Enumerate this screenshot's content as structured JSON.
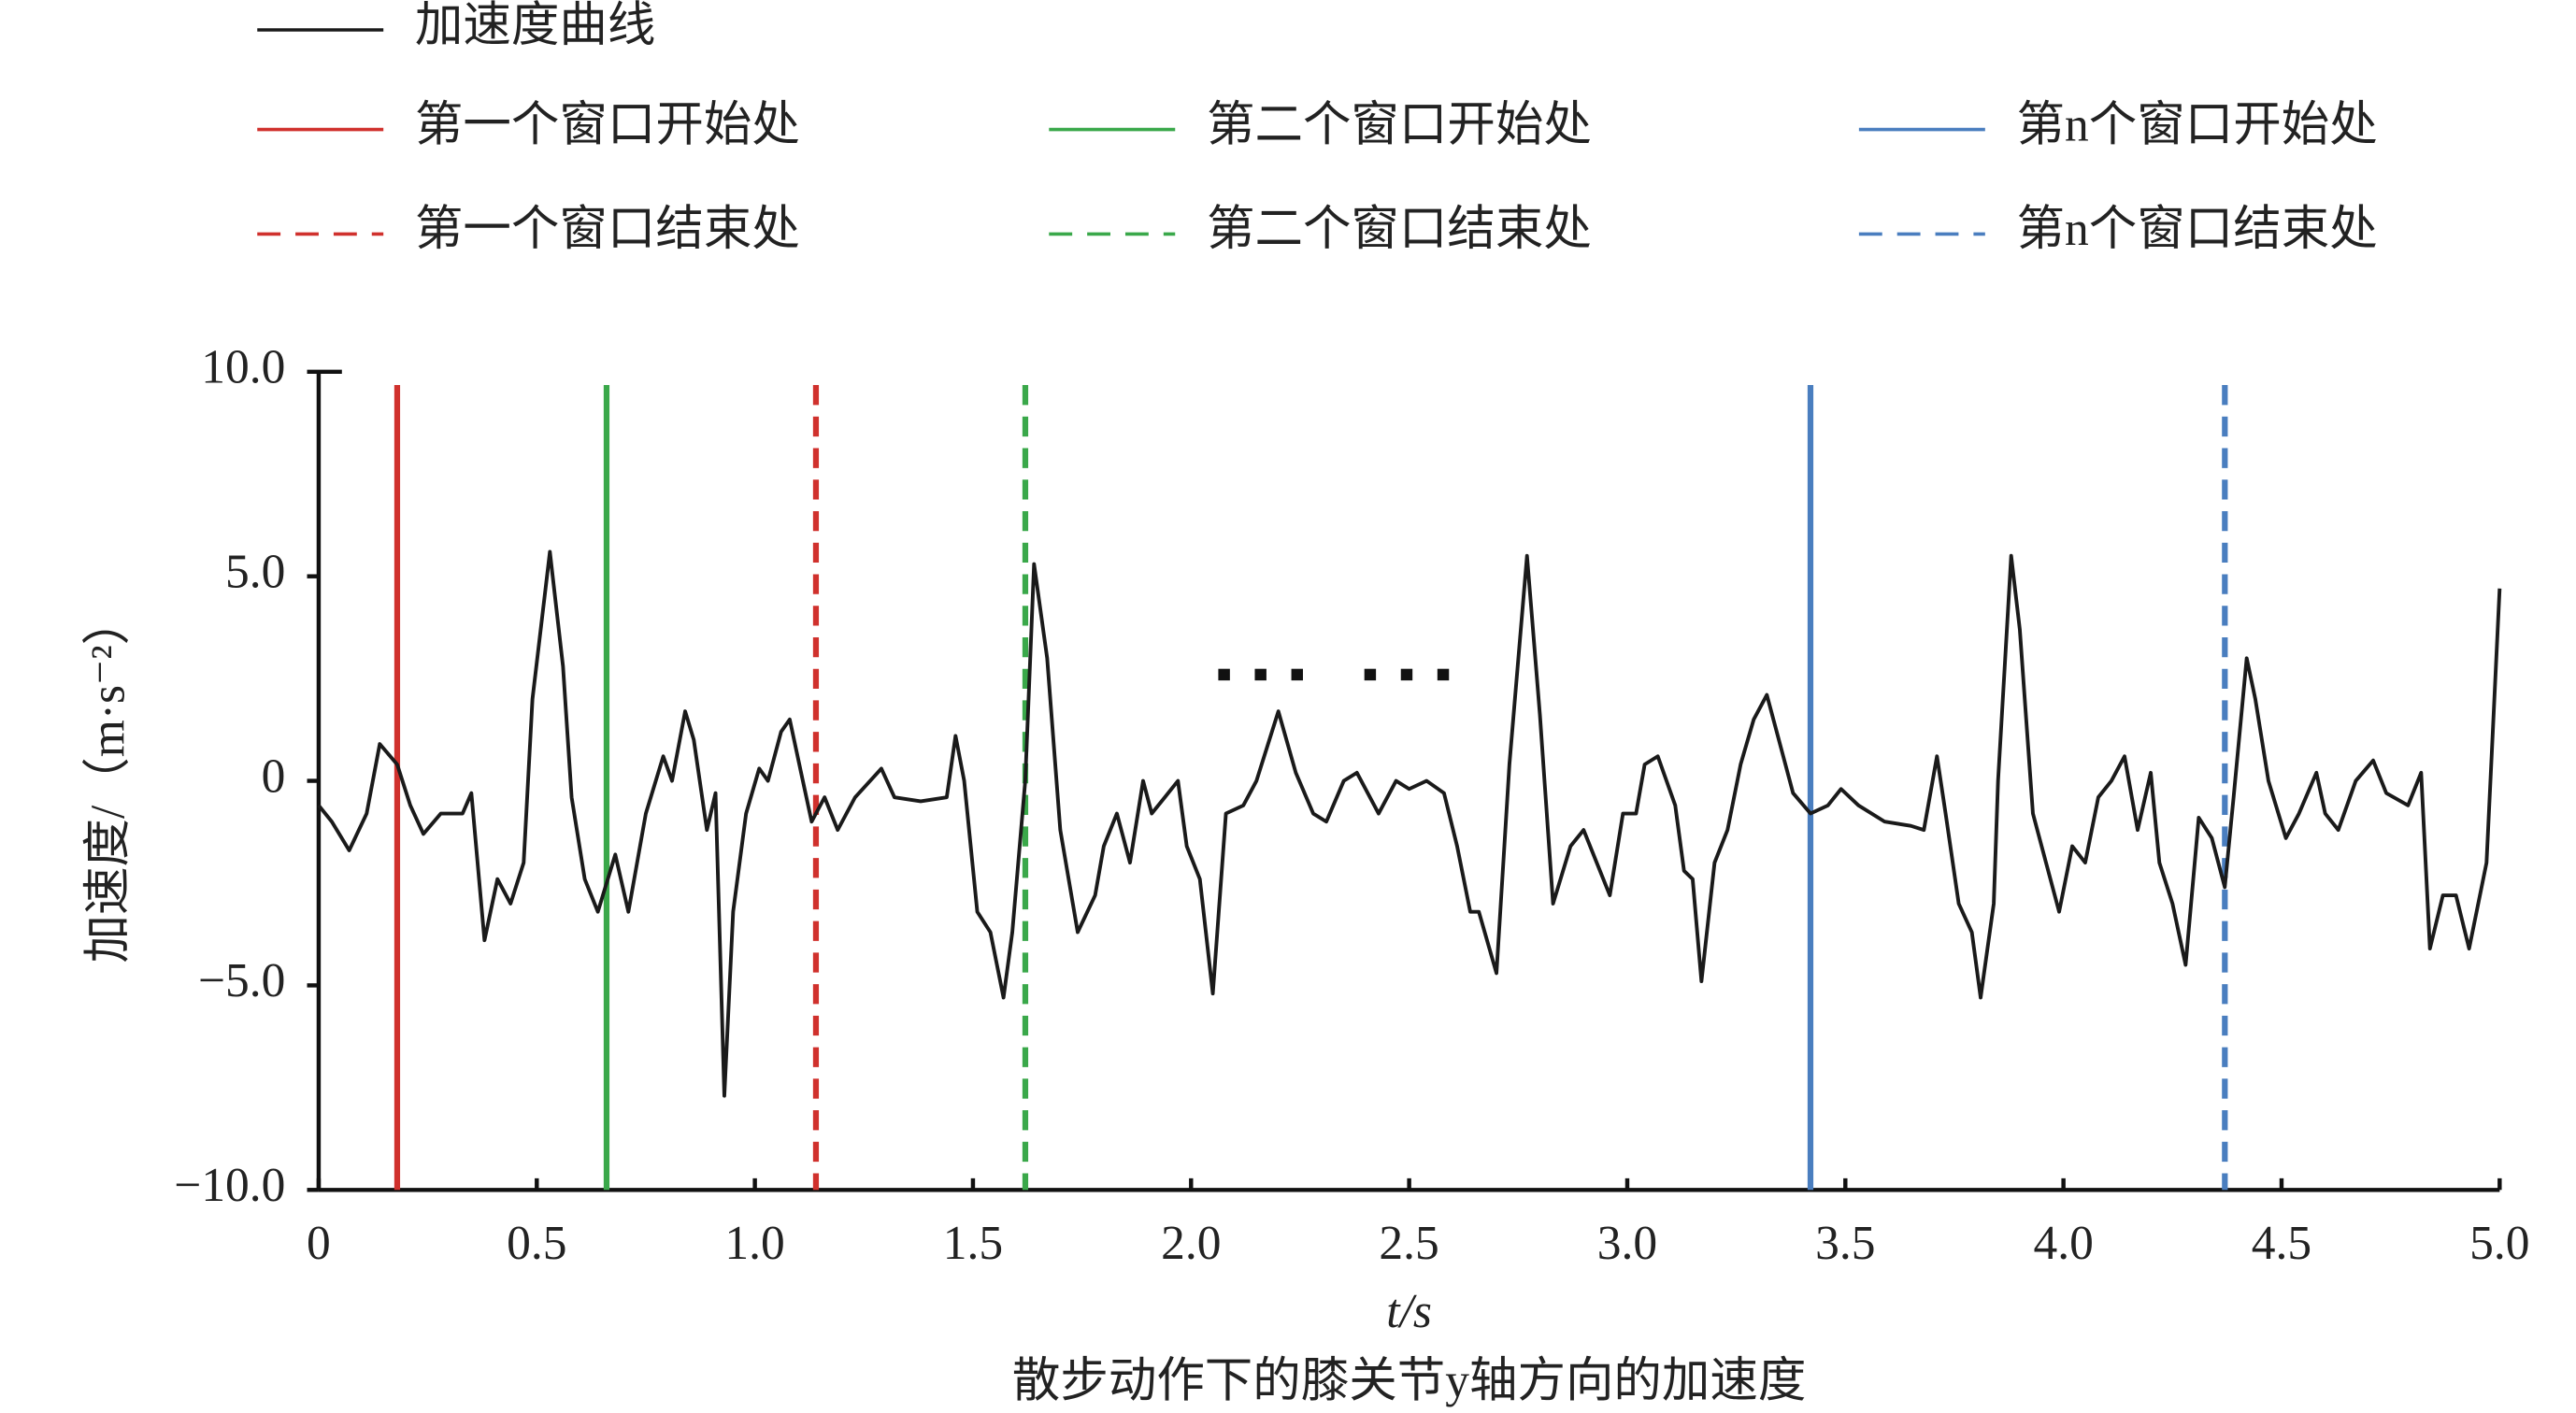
{
  "chart_data": {
    "type": "line",
    "x_label": "t/s",
    "y_label": "加速度/（m·s⁻²）",
    "caption": "散步动作下的膝关节y轴方向的加速度",
    "xlim": [
      0,
      5
    ],
    "xticks": [
      0,
      0.5,
      {
        "value": 1,
        "label": "1.0"
      },
      1.5,
      {
        "value": 2,
        "label": "2.0"
      },
      2.5,
      {
        "value": 3,
        "label": "3.0"
      },
      3.5,
      {
        "value": 4,
        "label": "4.0"
      },
      4.5,
      {
        "value": 5,
        "label": "5.0"
      }
    ],
    "ylim": [
      -10,
      10
    ],
    "yticks": [
      {
        "value": -10,
        "label": "−10.0"
      },
      {
        "value": -5,
        "label": "−5.0"
      },
      0,
      {
        "value": 5,
        "label": "5.0"
      },
      {
        "value": 10,
        "label": "10.0"
      }
    ],
    "series": [
      {
        "name": "加速度曲线",
        "color": "#1a1a1a",
        "x": [
          0,
          0.03,
          0.07,
          0.11,
          0.14,
          0.18,
          0.21,
          0.24,
          0.28,
          0.33,
          0.35,
          0.38,
          0.41,
          0.44,
          0.47,
          0.49,
          0.53,
          0.56,
          0.58,
          0.61,
          0.64,
          0.68,
          0.71,
          0.75,
          0.79,
          0.81,
          0.84,
          0.86,
          0.89,
          0.91,
          0.93,
          0.95,
          0.98,
          1.01,
          1.03,
          1.06,
          1.08,
          1.11,
          1.13,
          1.16,
          1.19,
          1.23,
          1.29,
          1.32,
          1.38,
          1.44,
          1.46,
          1.48,
          1.51,
          1.54,
          1.57,
          1.59,
          1.62,
          1.64,
          1.67,
          1.7,
          1.74,
          1.78,
          1.8,
          1.83,
          1.86,
          1.89,
          1.91,
          1.94,
          1.97,
          1.99,
          2.02,
          2.05,
          2.08,
          2.12,
          2.15,
          2.2,
          2.24,
          2.28,
          2.31,
          2.35,
          2.38,
          2.43,
          2.47,
          2.5,
          2.54,
          2.58,
          2.61,
          2.64,
          2.66,
          2.7,
          2.73,
          2.77,
          2.8,
          2.83,
          2.87,
          2.9,
          2.93,
          2.96,
          2.99,
          3.02,
          3.04,
          3.07,
          3.11,
          3.13,
          3.15,
          3.17,
          3.2,
          3.23,
          3.26,
          3.29,
          3.32,
          3.35,
          3.38,
          3.42,
          3.46,
          3.49,
          3.53,
          3.59,
          3.65,
          3.68,
          3.71,
          3.73,
          3.76,
          3.79,
          3.81,
          3.84,
          3.85,
          3.88,
          3.9,
          3.93,
          3.96,
          3.99,
          4.02,
          4.05,
          4.08,
          4.11,
          4.14,
          4.17,
          4.2,
          4.22,
          4.25,
          4.28,
          4.31,
          4.34,
          4.37,
          4.39,
          4.42,
          4.44,
          4.47,
          4.51,
          4.54,
          4.58,
          4.6,
          4.63,
          4.67,
          4.71,
          4.74,
          4.79,
          4.82,
          4.84,
          4.87,
          4.9,
          4.93,
          4.97,
          5.0
        ],
        "values": [
          -0.6,
          -1.0,
          -1.7,
          -0.8,
          0.9,
          0.4,
          -0.6,
          -1.3,
          -0.8,
          -0.8,
          -0.3,
          -3.9,
          -2.4,
          -3.0,
          -2.0,
          2.0,
          5.6,
          2.8,
          -0.4,
          -2.4,
          -3.2,
          -1.8,
          -3.2,
          -0.8,
          0.6,
          0,
          1.7,
          1.0,
          -1.2,
          -0.3,
          -7.7,
          -3.2,
          -0.8,
          0.3,
          0,
          1.2,
          1.5,
          0,
          -1.0,
          -0.4,
          -1.2,
          -0.4,
          0.3,
          -0.4,
          -0.5,
          -0.4,
          1.1,
          0,
          -3.2,
          -3.7,
          -5.3,
          -3.7,
          0,
          5.3,
          3.0,
          -1.2,
          -3.7,
          -2.8,
          -1.6,
          -0.8,
          -2.0,
          0,
          -0.8,
          -0.4,
          0,
          -1.6,
          -2.4,
          -5.2,
          -0.8,
          -0.6,
          0,
          1.7,
          0.2,
          -0.8,
          -1.0,
          0,
          0.2,
          -0.8,
          0,
          -0.2,
          0,
          -0.3,
          -1.6,
          -3.2,
          -3.2,
          -4.7,
          0.4,
          5.5,
          1.6,
          -3.0,
          -1.6,
          -1.2,
          -2.0,
          -2.8,
          -0.8,
          -0.8,
          0.4,
          0.6,
          -0.6,
          -2.2,
          -2.4,
          -4.9,
          -2.0,
          -1.2,
          0.4,
          1.5,
          2.1,
          0.9,
          -0.3,
          -0.8,
          -0.6,
          -0.2,
          -0.6,
          -1.0,
          -1.1,
          -1.2,
          0.6,
          -0.8,
          -3.0,
          -3.7,
          -5.3,
          -3.0,
          0,
          5.5,
          3.7,
          -0.8,
          -2.0,
          -3.2,
          -1.6,
          -2.0,
          -0.4,
          0,
          0.6,
          -1.2,
          0.2,
          -2.0,
          -3.0,
          -4.5,
          -0.9,
          -1.4,
          -2.6,
          -0.4,
          3.0,
          2.0,
          0,
          -1.4,
          -0.8,
          0.2,
          -0.8,
          -1.2,
          0,
          0.5,
          -0.3,
          -0.6,
          0.2,
          -4.1,
          -2.8,
          -2.8,
          -4.1,
          -2.0,
          4.7
        ]
      }
    ],
    "vlines": [
      {
        "name": "第一个窗口开始处",
        "color": "#d0312d",
        "x": 0.18,
        "dashed": false
      },
      {
        "name": "第二个窗口开始处",
        "color": "#3aa84a",
        "x": 0.66,
        "dashed": false
      },
      {
        "name": "第n个窗口开始处",
        "color": "#4a7ebf",
        "x": 3.42,
        "dashed": false
      },
      {
        "name": "第一个窗口结束处",
        "color": "#d0312d",
        "x": 1.14,
        "dashed": true
      },
      {
        "name": "第二个窗口结束处",
        "color": "#3aa84a",
        "x": 1.62,
        "dashed": true
      },
      {
        "name": "第n个窗口结束处",
        "color": "#4a7ebf",
        "x": 4.37,
        "dashed": true
      }
    ]
  }
}
